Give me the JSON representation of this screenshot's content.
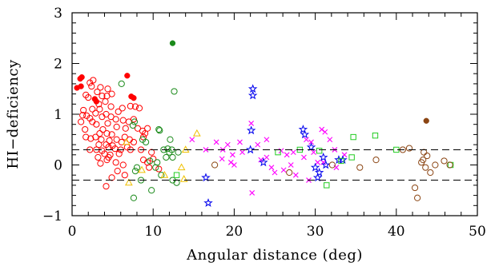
{
  "chart_data": {
    "type": "scatter",
    "title": "",
    "xlabel": "Angular distance (deg)",
    "ylabel": "HI−deficiency",
    "xlim": [
      0,
      50
    ],
    "ylim": [
      -1,
      3
    ],
    "xticks": [
      0,
      10,
      20,
      30,
      40,
      50
    ],
    "yticks": [
      -1,
      0,
      1,
      2,
      3
    ],
    "grid": false,
    "reference_lines": [
      {
        "y": 0.3,
        "style": "dashed"
      },
      {
        "y": -0.3,
        "style": "dashed"
      }
    ],
    "series": [
      {
        "marker": "filled-circle",
        "color": "#ff0000",
        "points": [
          [
            1.0,
            1.7
          ],
          [
            1.2,
            1.73
          ],
          [
            0.6,
            1.52
          ],
          [
            1.1,
            1.55
          ],
          [
            2.8,
            1.3
          ],
          [
            3.0,
            1.25
          ],
          [
            6.8,
            1.76
          ],
          [
            7.3,
            1.35
          ],
          [
            7.6,
            1.32
          ]
        ]
      },
      {
        "marker": "open-circle",
        "color": "#ff0000",
        "points": [
          [
            2.2,
            1.62
          ],
          [
            2.6,
            1.67
          ],
          [
            2.4,
            1.55
          ],
          [
            3.5,
            1.53
          ],
          [
            3.1,
            1.44
          ],
          [
            4.4,
            1.5
          ],
          [
            1.7,
            1.38
          ],
          [
            2.0,
            1.33
          ],
          [
            3.7,
            1.36
          ],
          [
            4.3,
            1.36
          ],
          [
            4.9,
            1.4
          ],
          [
            4.1,
            1.25
          ],
          [
            3.3,
            1.2
          ],
          [
            1.4,
            1.08
          ],
          [
            2.5,
            1.1
          ],
          [
            3.4,
            1.1
          ],
          [
            4.8,
            1.15
          ],
          [
            6.2,
            1.12
          ],
          [
            7.2,
            1.16
          ],
          [
            7.8,
            1.15
          ],
          [
            8.3,
            1.12
          ],
          [
            2.9,
            1.02
          ],
          [
            4.2,
            1.0
          ],
          [
            5.7,
            1.05
          ],
          [
            1.3,
            0.98
          ],
          [
            1.8,
            0.97
          ],
          [
            2.2,
            0.92
          ],
          [
            3.7,
            0.95
          ],
          [
            4.8,
            0.95
          ],
          [
            5.4,
            0.9
          ],
          [
            6.3,
            0.88
          ],
          [
            7.0,
            0.85
          ],
          [
            7.6,
            0.9
          ],
          [
            1.1,
            0.85
          ],
          [
            2.5,
            0.85
          ],
          [
            3.0,
            0.8
          ],
          [
            4.4,
            0.82
          ],
          [
            5.5,
            0.75
          ],
          [
            6.6,
            0.72
          ],
          [
            8.1,
            0.72
          ],
          [
            8.7,
            0.67
          ],
          [
            9.0,
            0.62
          ],
          [
            9.3,
            0.72
          ],
          [
            1.6,
            0.7
          ],
          [
            3.8,
            0.7
          ],
          [
            4.3,
            0.62
          ],
          [
            4.9,
            0.6
          ],
          [
            1.7,
            0.55
          ],
          [
            2.3,
            0.52
          ],
          [
            2.9,
            0.55
          ],
          [
            3.4,
            0.62
          ],
          [
            3.6,
            0.5
          ],
          [
            4.6,
            0.48
          ],
          [
            5.5,
            0.5
          ],
          [
            6.5,
            0.55
          ],
          [
            7.1,
            0.5
          ],
          [
            7.6,
            0.45
          ],
          [
            6.1,
            0.45
          ],
          [
            8.8,
            0.55
          ],
          [
            3.3,
            0.4
          ],
          [
            4.2,
            0.4
          ],
          [
            5.0,
            0.38
          ],
          [
            4.5,
            0.35
          ],
          [
            5.3,
            0.32
          ],
          [
            6.0,
            0.3
          ],
          [
            6.8,
            0.35
          ],
          [
            7.2,
            0.3
          ],
          [
            3.0,
            0.3
          ],
          [
            2.2,
            0.3
          ],
          [
            3.7,
            0.28
          ],
          [
            8.5,
            0.3
          ],
          [
            4.0,
            0.22
          ],
          [
            4.7,
            0.2
          ],
          [
            5.8,
            0.22
          ],
          [
            3.2,
            0.15
          ],
          [
            4.5,
            0.15
          ],
          [
            4.3,
            0.1
          ],
          [
            5.4,
            0.05
          ],
          [
            3.5,
            0.03
          ],
          [
            6.3,
            0.0
          ],
          [
            5.6,
            -0.12
          ],
          [
            6.5,
            -0.2
          ],
          [
            4.9,
            -0.25
          ],
          [
            9.8,
            0.25
          ],
          [
            10.0,
            0.12
          ],
          [
            8.8,
            0.1
          ],
          [
            9.3,
            0.05
          ],
          [
            9.5,
            -0.05
          ],
          [
            10.7,
            -0.08
          ],
          [
            4.2,
            -0.42
          ]
        ]
      },
      {
        "marker": "open-circle",
        "color": "#1a8a1a",
        "points": [
          [
            6.1,
            1.6
          ],
          [
            7.7,
            0.85
          ],
          [
            7.5,
            0.78
          ],
          [
            10.7,
            0.7
          ],
          [
            10.8,
            0.68
          ],
          [
            12.6,
            1.45
          ],
          [
            8.7,
            0.5
          ],
          [
            9.1,
            0.45
          ],
          [
            11.3,
            0.3
          ],
          [
            11.8,
            0.32
          ],
          [
            12.3,
            0.3
          ],
          [
            12.1,
            0.5
          ],
          [
            13.1,
            0.25
          ],
          [
            11.6,
            0.15
          ],
          [
            12.4,
            0.15
          ],
          [
            8.0,
            -0.05
          ],
          [
            9.6,
            0.08
          ],
          [
            10.5,
            0.05
          ],
          [
            10.3,
            -0.05
          ],
          [
            11.0,
            -0.2
          ],
          [
            12.4,
            -0.3
          ],
          [
            12.9,
            -0.35
          ],
          [
            7.8,
            -0.12
          ],
          [
            8.5,
            -0.3
          ],
          [
            9.8,
            -0.5
          ],
          [
            7.6,
            -0.65
          ],
          [
            12.0,
            0.25
          ]
        ]
      },
      {
        "marker": "filled-circle",
        "color": "#1a8a1a",
        "points": [
          [
            12.4,
            2.4
          ]
        ]
      },
      {
        "marker": "open-triangle",
        "color": "#f0c000",
        "points": [
          [
            15.4,
            0.62
          ],
          [
            6.7,
            0.45
          ],
          [
            14.0,
            0.3
          ],
          [
            8.6,
            -0.1
          ],
          [
            13.5,
            -0.05
          ],
          [
            11.4,
            -0.2
          ],
          [
            7.0,
            -0.35
          ],
          [
            13.8,
            -0.28
          ]
        ]
      },
      {
        "marker": "cross",
        "color": "#ff00ff",
        "points": [
          [
            14.8,
            0.5
          ],
          [
            22.1,
            0.82
          ],
          [
            19.2,
            0.4
          ],
          [
            20.7,
            0.45
          ],
          [
            22.9,
            0.4
          ],
          [
            24.0,
            0.5
          ],
          [
            21.0,
            0.25
          ],
          [
            19.6,
            0.05
          ],
          [
            18.5,
            0.12
          ],
          [
            20.0,
            0.0
          ],
          [
            24.0,
            0.15
          ],
          [
            25.8,
            0.28
          ],
          [
            26.5,
            0.2
          ],
          [
            27.3,
            0.25
          ],
          [
            27.0,
            0.0
          ],
          [
            22.2,
            -0.55
          ],
          [
            28.9,
            0.5
          ],
          [
            29.5,
            0.45
          ],
          [
            30.8,
            0.7
          ],
          [
            31.2,
            0.65
          ],
          [
            31.8,
            0.5
          ],
          [
            29.8,
            0.25
          ],
          [
            32.4,
            0.3
          ],
          [
            33.6,
            0.2
          ],
          [
            28.6,
            0.15
          ],
          [
            30.3,
            0.05
          ],
          [
            31.0,
            0.05
          ],
          [
            24.6,
            -0.05
          ],
          [
            26.1,
            -0.1
          ],
          [
            25.0,
            -0.15
          ],
          [
            27.6,
            -0.2
          ],
          [
            29.2,
            -0.3
          ],
          [
            32.6,
            -0.05
          ],
          [
            16.5,
            0.3
          ],
          [
            17.8,
            0.45
          ],
          [
            18.6,
            0.3
          ],
          [
            19.8,
            0.2
          ],
          [
            23.3,
            0.1
          ]
        ]
      },
      {
        "marker": "open-star",
        "color": "#0000ee",
        "points": [
          [
            22.3,
            1.5
          ],
          [
            22.3,
            1.37
          ],
          [
            22.1,
            0.68
          ],
          [
            28.5,
            0.7
          ],
          [
            28.7,
            0.6
          ],
          [
            16.8,
            -0.75
          ],
          [
            16.5,
            -0.25
          ],
          [
            23.6,
            0.05
          ],
          [
            29.5,
            0.35
          ],
          [
            22.0,
            0.3
          ],
          [
            30.0,
            -0.05
          ],
          [
            30.3,
            -0.25
          ],
          [
            30.5,
            -0.15
          ],
          [
            31.0,
            0.15
          ],
          [
            32.9,
            0.1
          ],
          [
            33.4,
            0.1
          ],
          [
            31.3,
            0.0
          ]
        ]
      },
      {
        "marker": "open-square",
        "color": "#22cc22",
        "points": [
          [
            34.7,
            0.55
          ],
          [
            37.4,
            0.58
          ],
          [
            40.0,
            0.3
          ],
          [
            25.4,
            0.25
          ],
          [
            33.2,
            0.08
          ],
          [
            31.4,
            -0.4
          ],
          [
            30.5,
            0.28
          ],
          [
            34.5,
            0.15
          ],
          [
            12.9,
            -0.2
          ],
          [
            28.1,
            0.3
          ],
          [
            46.7,
            0.0
          ]
        ]
      },
      {
        "marker": "open-circle",
        "color": "#8b4513",
        "points": [
          [
            37.5,
            0.1
          ],
          [
            40.8,
            0.3
          ],
          [
            41.6,
            0.33
          ],
          [
            43.4,
            0.25
          ],
          [
            43.8,
            0.18
          ],
          [
            43.1,
            0.05
          ],
          [
            43.3,
            0.1
          ],
          [
            44.8,
            0.0
          ],
          [
            43.6,
            -0.05
          ],
          [
            44.2,
            -0.15
          ],
          [
            45.9,
            0.08
          ],
          [
            46.6,
            0.0
          ],
          [
            42.3,
            -0.45
          ],
          [
            42.6,
            -0.65
          ],
          [
            26.8,
            -0.15
          ],
          [
            17.6,
            0.0
          ],
          [
            32.1,
            0.0
          ],
          [
            35.5,
            -0.05
          ]
        ]
      },
      {
        "marker": "filled-circle",
        "color": "#8b4513",
        "points": [
          [
            43.7,
            0.87
          ]
        ]
      }
    ]
  }
}
